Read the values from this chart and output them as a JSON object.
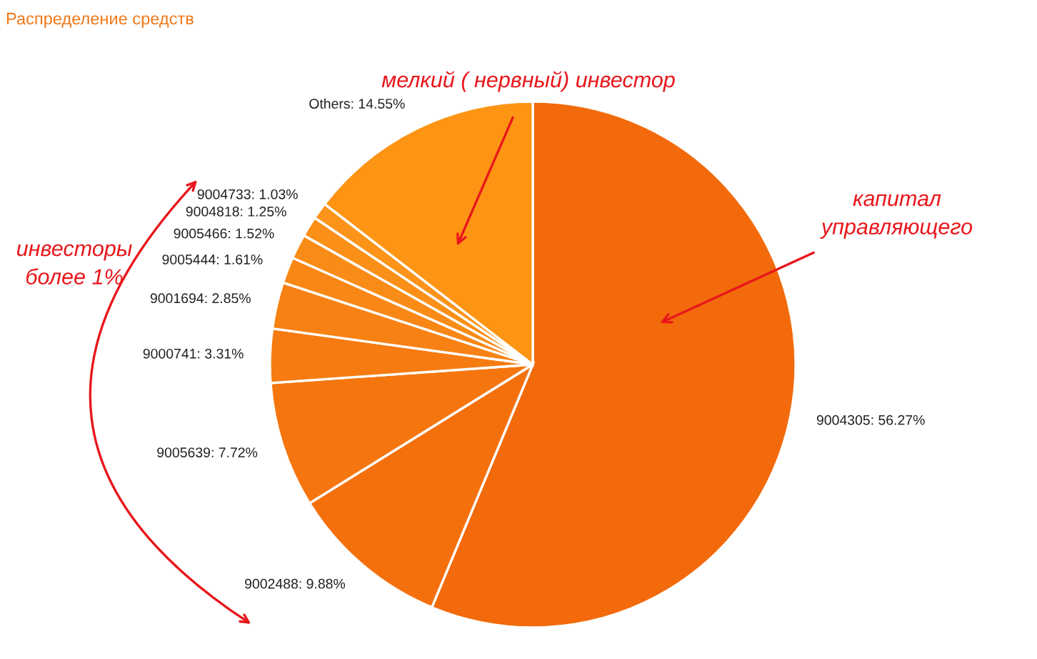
{
  "chart_data": {
    "type": "pie",
    "title": "Распределение средств",
    "categories": [
      "9004305",
      "9002488",
      "9005639",
      "9000741",
      "9001694",
      "9005444",
      "9005466",
      "9004818",
      "9004733",
      "Others"
    ],
    "values": [
      56.27,
      9.88,
      7.72,
      3.31,
      2.85,
      1.61,
      1.52,
      1.25,
      1.03,
      14.55
    ],
    "value_labels": [
      "56.27%",
      "9.88%",
      "7.72%",
      "3.31%",
      "2.85%",
      "1.61%",
      "1.52%",
      "1.25%",
      "1.03%",
      "14.55%"
    ],
    "colors": [
      "#f26a0b",
      "#f4700d",
      "#f5760f",
      "#f67c11",
      "#f78213",
      "#f88715",
      "#f98c16",
      "#fa9018",
      "#fb9419",
      "#fd9414"
    ],
    "annotations": [
      "мелкий ( нервный) инвестор",
      "капитал\nуправляющего",
      "инвесторы\nболее 1%"
    ]
  }
}
